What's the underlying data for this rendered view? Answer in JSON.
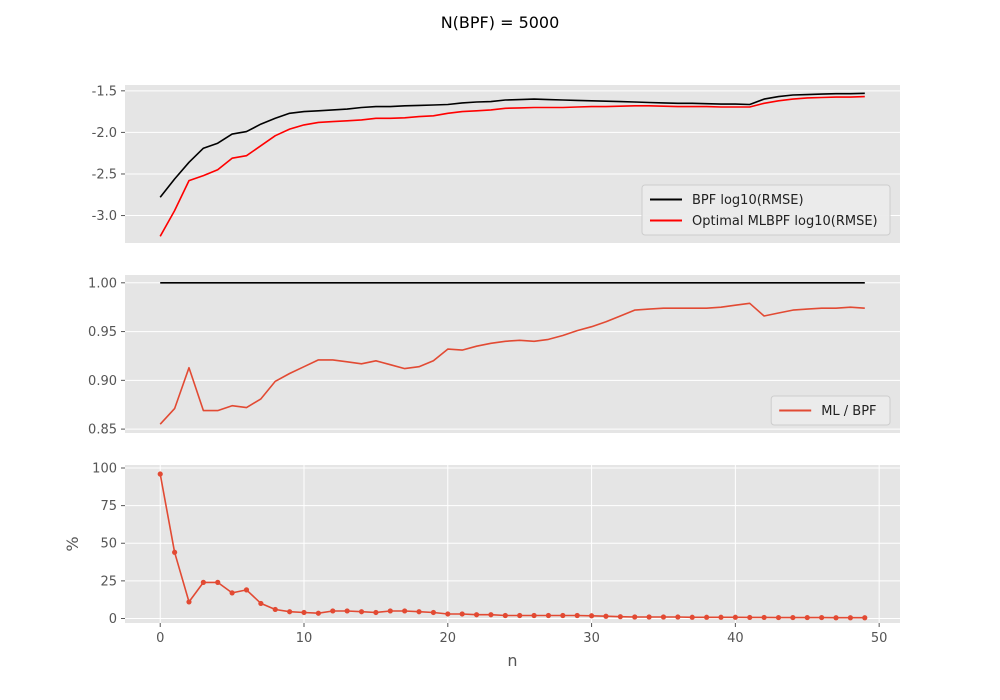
{
  "title": "N(BPF) = 5000",
  "colors": {
    "panel_bg": "#e5e5e5",
    "grid": "#ffffff",
    "black": "#000000",
    "red": "#ff0000",
    "ggred": "#e24a33",
    "tick": "#555555"
  },
  "chart_data": [
    {
      "type": "line",
      "ylim": [
        -3.33,
        -1.43
      ],
      "xlim": [
        -2.45,
        51.45
      ],
      "yticks": [
        "-3.0",
        "-2.5",
        "-2.0",
        "-1.5"
      ],
      "ytick_values": [
        -3.0,
        -2.5,
        -2.0,
        -1.5
      ],
      "grid": true,
      "legend_placement": "lower-right",
      "series": [
        {
          "name": "BPF log10(RMSE)",
          "color": "#000000",
          "y": [
            -2.78,
            -2.56,
            -2.36,
            -2.19,
            -2.13,
            -2.02,
            -1.99,
            -1.9,
            -1.83,
            -1.77,
            -1.75,
            -1.74,
            -1.73,
            -1.72,
            -1.7,
            -1.69,
            -1.69,
            -1.68,
            -1.675,
            -1.67,
            -1.665,
            -1.645,
            -1.635,
            -1.63,
            -1.61,
            -1.605,
            -1.6,
            -1.605,
            -1.61,
            -1.615,
            -1.62,
            -1.625,
            -1.63,
            -1.635,
            -1.64,
            -1.645,
            -1.65,
            -1.65,
            -1.655,
            -1.66,
            -1.66,
            -1.665,
            -1.6,
            -1.57,
            -1.55,
            -1.545,
            -1.54,
            -1.535,
            -1.535,
            -1.53
          ]
        },
        {
          "name": "Optimal MLBPF log10(RMSE)",
          "color": "#ff0000",
          "y": [
            -3.25,
            -2.94,
            -2.58,
            -2.52,
            -2.45,
            -2.31,
            -2.28,
            -2.16,
            -2.04,
            -1.96,
            -1.91,
            -1.88,
            -1.87,
            -1.86,
            -1.85,
            -1.83,
            -1.83,
            -1.825,
            -1.81,
            -1.8,
            -1.77,
            -1.75,
            -1.74,
            -1.73,
            -1.71,
            -1.705,
            -1.7,
            -1.7,
            -1.7,
            -1.695,
            -1.69,
            -1.69,
            -1.685,
            -1.68,
            -1.68,
            -1.685,
            -1.69,
            -1.69,
            -1.69,
            -1.695,
            -1.695,
            -1.695,
            -1.65,
            -1.62,
            -1.6,
            -1.585,
            -1.58,
            -1.575,
            -1.575,
            -1.57
          ]
        }
      ]
    },
    {
      "type": "line",
      "ylim": [
        0.846,
        1.008
      ],
      "xlim": [
        -2.45,
        51.45
      ],
      "yticks": [
        "0.85",
        "0.90",
        "0.95",
        "1.00"
      ],
      "ytick_values": [
        0.85,
        0.9,
        0.95,
        1.0
      ],
      "grid": true,
      "legend_placement": "lower-right",
      "series": [
        {
          "name": "",
          "color": "#000000",
          "y": [
            1,
            1,
            1,
            1,
            1,
            1,
            1,
            1,
            1,
            1,
            1,
            1,
            1,
            1,
            1,
            1,
            1,
            1,
            1,
            1,
            1,
            1,
            1,
            1,
            1,
            1,
            1,
            1,
            1,
            1,
            1,
            1,
            1,
            1,
            1,
            1,
            1,
            1,
            1,
            1,
            1,
            1,
            1,
            1,
            1,
            1,
            1,
            1,
            1,
            1
          ]
        },
        {
          "name": "ML / BPF",
          "color": "#e24a33",
          "y": [
            0.855,
            0.871,
            0.913,
            0.869,
            0.869,
            0.874,
            0.872,
            0.881,
            0.899,
            0.907,
            0.914,
            0.921,
            0.921,
            0.919,
            0.917,
            0.92,
            0.916,
            0.912,
            0.914,
            0.92,
            0.932,
            0.931,
            0.935,
            0.938,
            0.94,
            0.941,
            0.94,
            0.942,
            0.946,
            0.951,
            0.955,
            0.96,
            0.966,
            0.972,
            0.973,
            0.974,
            0.974,
            0.974,
            0.974,
            0.975,
            0.977,
            0.979,
            0.966,
            0.969,
            0.972,
            0.973,
            0.974,
            0.974,
            0.975,
            0.974
          ]
        }
      ]
    },
    {
      "type": "line",
      "ylabel": "%",
      "xlabel": "n",
      "ylim": [
        -3,
        102
      ],
      "xlim": [
        -2.45,
        51.45
      ],
      "yticks": [
        "0",
        "25",
        "50",
        "75",
        "100"
      ],
      "ytick_values": [
        0,
        25,
        50,
        75,
        100
      ],
      "xticks": [
        "0",
        "10",
        "20",
        "30",
        "40",
        "50"
      ],
      "xtick_values": [
        0,
        10,
        20,
        30,
        40,
        50
      ],
      "grid": true,
      "markers": true,
      "series": [
        {
          "name": "",
          "color": "#e24a33",
          "y": [
            96,
            44,
            11,
            24,
            24,
            17,
            19,
            10,
            6,
            4.5,
            4,
            3.5,
            5,
            5,
            4.5,
            4,
            5,
            5,
            4.5,
            4,
            3,
            3,
            2.5,
            2.5,
            2,
            2,
            2,
            2,
            2,
            2,
            1.8,
            1.5,
            1.2,
            1,
            1,
            1,
            1,
            0.8,
            0.8,
            0.8,
            0.8,
            0.7,
            0.7,
            0.6,
            0.6,
            0.6,
            0.6,
            0.5,
            0.5,
            0.5
          ]
        }
      ]
    }
  ]
}
